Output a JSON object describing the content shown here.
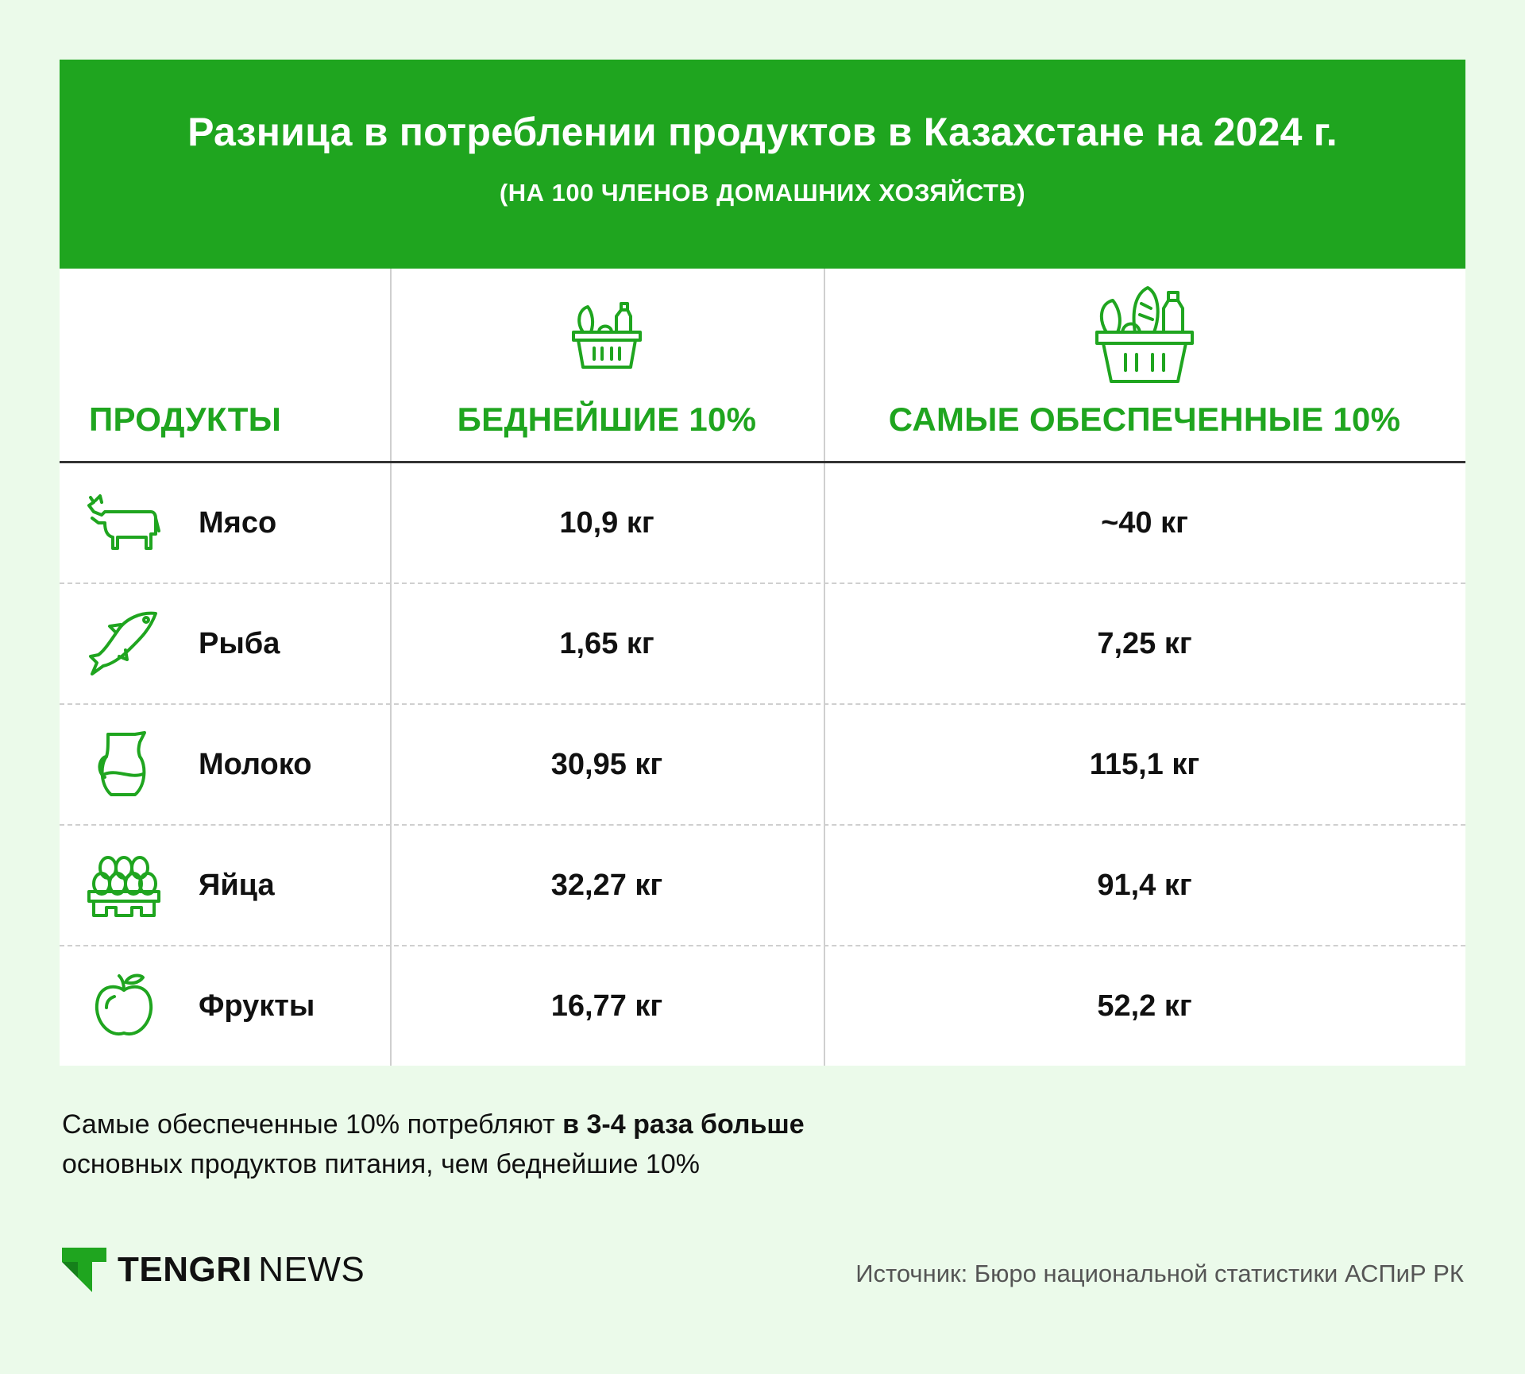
{
  "title": "Разница в потреблении продуктов в Казахстане на 2024 г.",
  "subtitle": "(НА 100 ЧЛЕНОВ ДОМАШНИХ ХОЗЯЙСТВ)",
  "columns": [
    "ПРОДУКТЫ",
    "БЕДНЕЙШИЕ 10%",
    "САМЫЕ ОБЕСПЕЧЕННЫЕ 10%"
  ],
  "rows": [
    {
      "product": "Мясо",
      "icon": "cow-icon",
      "poor": "10,9 кг",
      "rich": "~40 кг"
    },
    {
      "product": "Рыба",
      "icon": "fish-icon",
      "poor": "1,65 кг",
      "rich": "7,25 кг"
    },
    {
      "product": "Молоко",
      "icon": "milk-jug-icon",
      "poor": "30,95 кг",
      "rich": "115,1 кг"
    },
    {
      "product": "Яйца",
      "icon": "eggs-icon",
      "poor": "32,27 кг",
      "rich": "91,4 кг"
    },
    {
      "product": "Фрукты",
      "icon": "apple-icon",
      "poor": "16,77 кг",
      "rich": "52,2 кг"
    }
  ],
  "note": {
    "text_before": "Самые обеспеченные 10% потребляют ",
    "bold": "в 3-4 раза больше",
    "text_after": "основных продуктов питания, чем беднейшие 10%"
  },
  "logo": {
    "brand_bold": "TENGRI",
    "brand_light": "NEWS"
  },
  "source": "Источник: Бюро национальной статистики АСПиР РК",
  "colors": {
    "accent": "#1fa51f",
    "background": "#ebfaea"
  },
  "chart_data": {
    "type": "table",
    "title": "Разница в потреблении продуктов в Казахстане на 2024 г.",
    "subtitle": "(НА 100 ЧЛЕНОВ ДОМАШНИХ ХОЗЯЙСТВ)",
    "categories": [
      "Мясо",
      "Рыба",
      "Молоко",
      "Яйца",
      "Фрукты"
    ],
    "series": [
      {
        "name": "БЕДНЕЙШИЕ 10%",
        "values": [
          10.9,
          1.65,
          30.95,
          32.27,
          16.77
        ]
      },
      {
        "name": "САМЫЕ ОБЕСПЕЧЕННЫЕ 10%",
        "values": [
          40,
          7.25,
          115.1,
          91.4,
          52.2
        ]
      }
    ],
    "unit": "кг"
  }
}
